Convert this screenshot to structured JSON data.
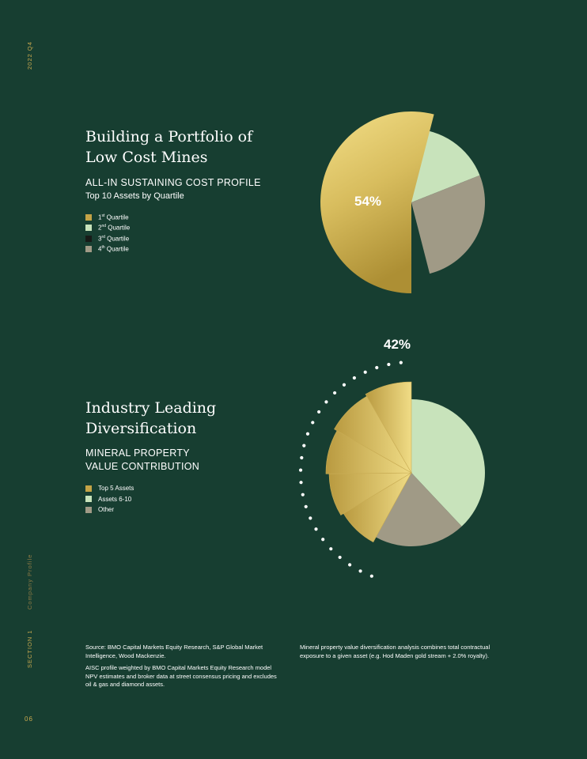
{
  "sidebar": {
    "year_quarter": "2022   Q4",
    "section_label": "SECTION 1",
    "company_profile": "Company Profile",
    "page_number": "06"
  },
  "section1": {
    "title_line1": "Building a Portfolio of",
    "title_line2": "Low Cost Mines",
    "subtitle": "ALL-IN SUSTAINING COST PROFILE",
    "caption": "Top 10 Assets by Quartile",
    "legend": [
      {
        "label": "1st Quartile",
        "ordinal": "1",
        "suffix": "st",
        "rest": " Quartile",
        "color": "#c4a447"
      },
      {
        "label": "2nd Quartile",
        "ordinal": "2",
        "suffix": "nd",
        "rest": " Quartile",
        "color": "#c8e3bb"
      },
      {
        "label": "3rd Quartile",
        "ordinal": "3",
        "suffix": "rd",
        "rest": " Quartile",
        "color": "#171a17"
      },
      {
        "label": "4th Quartile",
        "ordinal": "4",
        "suffix": "th",
        "rest": " Quartile",
        "color": "#a09a86"
      }
    ]
  },
  "section2": {
    "title_line1": "Industry Leading",
    "title_line2": "Diversification",
    "subtitle_line1": "MINERAL PROPERTY",
    "subtitle_line2": "VALUE CONTRIBUTION",
    "legend": [
      {
        "label": "Top 5 Assets",
        "color": "#c4a447"
      },
      {
        "label": "Assets 6-10",
        "color": "#c8e3bb"
      },
      {
        "label": "Other",
        "color": "#a09a86"
      }
    ]
  },
  "chart_data": [
    {
      "type": "pie",
      "title": "ALL-IN SUSTAINING COST PROFILE",
      "subtitle": "Top 10 Assets by Quartile",
      "categories": [
        "1st Quartile",
        "2nd Quartile",
        "4th Quartile"
      ],
      "values": [
        54,
        19,
        27
      ],
      "data_labels": [
        "54%"
      ],
      "colors": [
        "#c4a447",
        "#c8e3bb",
        "#a09a86"
      ],
      "exploded": "1st Quartile"
    },
    {
      "type": "pie",
      "title": "MINERAL PROPERTY VALUE CONTRIBUTION",
      "categories": [
        "Top 5 Assets",
        "Assets 6-10",
        "Other"
      ],
      "values": [
        42,
        38,
        20
      ],
      "data_labels": [
        "42%"
      ],
      "colors": [
        "#c4a447",
        "#c8e3bb",
        "#a09a86"
      ],
      "exploded": "Top 5 Assets",
      "top5_sub_slices": 5
    }
  ],
  "notes": {
    "left_p1": "Source: BMO Capital Markets Equity Research, S&P Global Market Intelligence, Wood Mackenzie.",
    "left_p2": "AISC profile weighted by BMO Capital Markets Equity Research model NPV estimates and broker data at street consensus pricing and excludes oil & gas and diamond assets.",
    "right_p1": "Mineral property value diversification analysis combines total contractual exposure to a given asset (e.g. Hod Maden gold stream + 2.0% royalty)."
  }
}
